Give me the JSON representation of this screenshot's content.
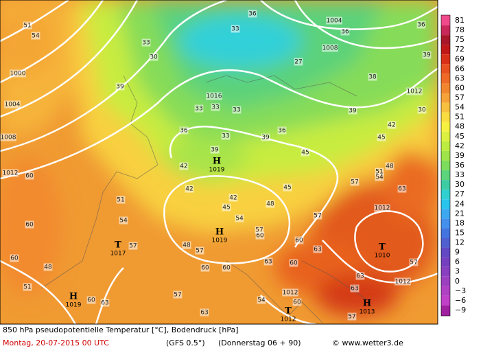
{
  "title": "850 hPa pseudopotentielle Temperatur [°C], Bodendruck [hPa]",
  "footer": {
    "date": "Montag, 20-07-2015  00 UTC",
    "model": "(GFS 0.5°)",
    "forecast": "(Donnerstag 06 + 90)",
    "credit": "© www.wetter3.de"
  },
  "scale": {
    "labels": [
      "81",
      "78",
      "75",
      "72",
      "69",
      "66",
      "63",
      "60",
      "57",
      "54",
      "51",
      "48",
      "45",
      "42",
      "39",
      "36",
      "33",
      "30",
      "27",
      "24",
      "21",
      "18",
      "15",
      "12",
      "9",
      "6",
      "3",
      "0",
      "−3",
      "−6",
      "−9"
    ],
    "colors": [
      "#f04a8c",
      "#c8285a",
      "#a8182a",
      "#c01818",
      "#d83018",
      "#e85020",
      "#ef6a26",
      "#f2862e",
      "#f6a23a",
      "#f8c040",
      "#f8dc40",
      "#f6f040",
      "#dcf040",
      "#bcec40",
      "#9ee44a",
      "#7cdc5c",
      "#5cd47c",
      "#3ecca4",
      "#30d0d0",
      "#28c4ec",
      "#3ca8f0",
      "#4490ec",
      "#4474e0",
      "#5060d0",
      "#6248c4",
      "#7440c0",
      "#8840c0",
      "#9c40c0",
      "#b040c4",
      "#c040c8",
      "#a020a0"
    ]
  },
  "pressure_centers": [
    {
      "symbol": "H",
      "value": 1019
    },
    {
      "symbol": "H",
      "value": 1019
    },
    {
      "symbol": "T",
      "value": 1017
    },
    {
      "symbol": "H",
      "value": 1019
    },
    {
      "symbol": "T",
      "value": 1010
    },
    {
      "symbol": "T",
      "value": 1012
    },
    {
      "symbol": "H",
      "value": 1013
    }
  ],
  "isobar_labels": [
    1004,
    1008,
    1000,
    1004,
    1008,
    1012,
    1016,
    1012,
    1012,
    1012,
    1012
  ],
  "temperature_labels": [
    51,
    54,
    33,
    30,
    36,
    36,
    36,
    33,
    27,
    39,
    39,
    38,
    30,
    33,
    33,
    33,
    39,
    36,
    33,
    39,
    42,
    45,
    39,
    36,
    42,
    45,
    48,
    51,
    54,
    42,
    42,
    45,
    48,
    45,
    57,
    63,
    57,
    54,
    51,
    54,
    60,
    60,
    60,
    48,
    51,
    48,
    57,
    57,
    57,
    60,
    60,
    63,
    60,
    60,
    63,
    60,
    57,
    54,
    60,
    63,
    60,
    63,
    57,
    63,
    57,
    63
  ]
}
